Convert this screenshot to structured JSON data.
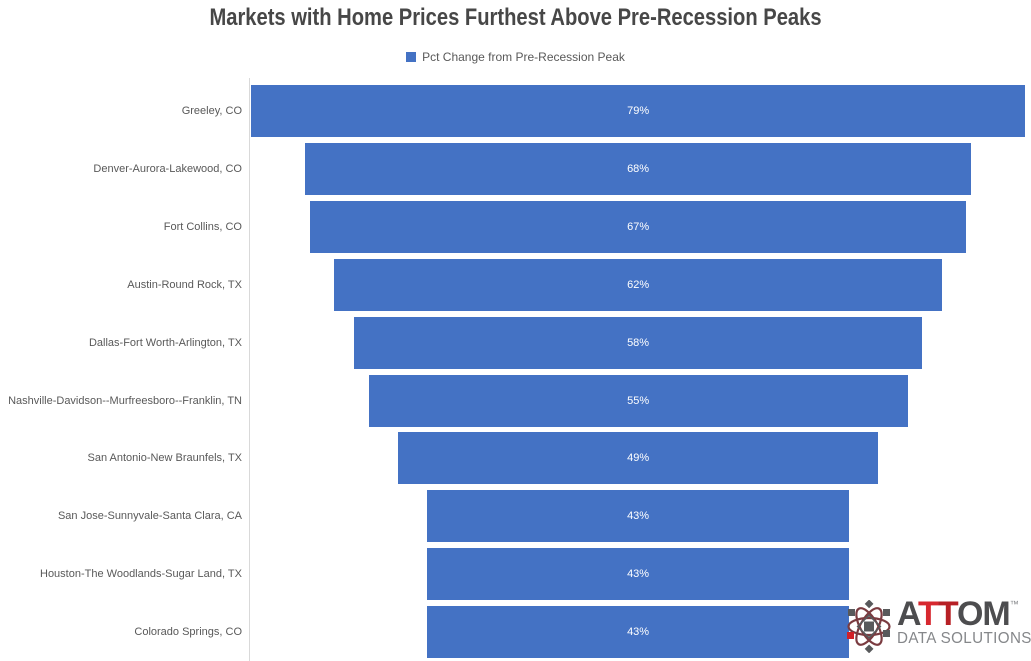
{
  "title": "Markets with Home Prices Furthest Above Pre-Recession Peaks",
  "legend": {
    "label": "Pct Change from Pre-Recession Peak",
    "swatch_color": "#4472C4"
  },
  "chart_data": {
    "type": "bar",
    "subtype": "horizontal-centered-funnel",
    "title": "Markets with Home Prices Furthest Above Pre-Recession Peaks",
    "series_name": "Pct Change from Pre-Recession Peak",
    "categories": [
      "Greeley, CO",
      "Denver-Aurora-Lakewood, CO",
      "Fort Collins, CO",
      "Austin-Round Rock, TX",
      "Dallas-Fort Worth-Arlington, TX",
      "Nashville-Davidson--Murfreesboro--Franklin, TN",
      "San Antonio-New Braunfels, TX",
      "San Jose-Sunnyvale-Santa Clara, CA",
      "Houston-The Woodlands-Sugar Land, TX",
      "Colorado Springs, CO"
    ],
    "values": [
      79,
      68,
      67,
      62,
      58,
      55,
      49,
      43,
      43,
      43
    ],
    "value_labels": [
      "79%",
      "68%",
      "67%",
      "62%",
      "58%",
      "55%",
      "49%",
      "43%",
      "43%",
      "43%"
    ],
    "xlim": [
      0,
      79
    ],
    "grid": false,
    "legend_position": "top-center",
    "bar_color": "#4472C4",
    "value_label_color": "#FFFFFF",
    "category_label_color": "#595959",
    "axis_line_color": "#D9D9D9"
  },
  "logo": {
    "brand_a": "A",
    "brand_t1": "T",
    "brand_t2": "T",
    "brand_om": "OM",
    "trademark": "™",
    "subtitle": "DATA SOLUTIONS",
    "text_color": "#4D4D4F",
    "accent_color_1": "#D7282F",
    "accent_color_2": "#B72025",
    "subtitle_color": "#85878A",
    "icon_orbit_color": "#7A3B40",
    "icon_node_color": "#58595B",
    "icon_accent_color": "#D22027"
  }
}
